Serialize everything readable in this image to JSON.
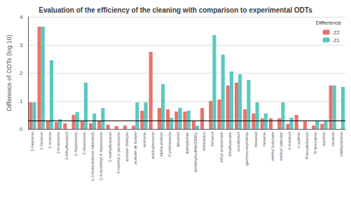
{
  "chart_data": {
    "type": "bar",
    "title": "Evaluation of the efficiency of the cleaning with comparison to experimental ODTs",
    "ylabel": "Difference of ODTs (log 10)",
    "legend_title": "Difference",
    "legend": "upper right",
    "grid": true,
    "categories": [
      "1-heptene-",
      "1-hexene-",
      "1-octene-",
      "2-butanone-",
      "2-éthylhexanol-",
      "2-heptanone-",
      "2-hexanone-",
      "2,3-butanedione (diacétyl)-",
      "2,6-diméthyl-4-heptanone-",
      "3-methylbutanal-",
      "4-methyl-2-pentanone-",
      "acetate d'éthyle-",
      "acétate de butyle-",
      "acétone-",
      "acétophenone-",
      "alpha-pinène-",
      "Cyclohexene-",
      "décanal-",
      "diéthylether-",
      "diméthylsulfide(DMS)-",
      "éthanetiol-",
      "éthanol-",
      "éthyl propionate-",
      "éthylbutyrate-",
      "eucalyptol-",
      "gamma-terpinène-",
      "hexanal-",
      "hexane-",
      "méthyl butyrate-",
      "méthyl valérate-",
      "n-butanol-",
      "o-xylène-",
      "Phenylethanot-",
      "R-limonène-",
      "styrène-",
      "toluène-",
      "triéthylamine-"
    ],
    "series": [
      {
        "name": "Z2",
        "color": "#E8736C",
        "values": [
          0.95,
          3.65,
          0.3,
          0.25,
          0.2,
          0.5,
          0.3,
          0.2,
          0.3,
          0.15,
          0.1,
          0.12,
          0.12,
          0.65,
          2.75,
          0.75,
          0.7,
          0.62,
          0.62,
          0.27,
          0.75,
          1.0,
          1.05,
          1.55,
          1.65,
          0.7,
          0.55,
          0.38,
          0.38,
          0.38,
          0.18,
          0.5,
          0.27,
          0.12,
          0.18,
          1.55,
          0.0
        ]
      },
      {
        "name": "Z1",
        "color": "#5BC8C0",
        "values": [
          0.95,
          3.65,
          2.45,
          0.35,
          0.0,
          0.6,
          1.65,
          0.55,
          0.75,
          0.0,
          0.0,
          0.0,
          0.95,
          0.95,
          0.0,
          1.6,
          0.4,
          0.75,
          0.65,
          0.12,
          0.0,
          3.35,
          2.65,
          2.05,
          1.95,
          1.75,
          0.95,
          0.55,
          0.0,
          0.95,
          0.4,
          0.0,
          0.0,
          0.28,
          0.3,
          1.55,
          1.5
        ]
      }
    ],
    "hline": 0.3,
    "ylim": [
      0,
      4
    ],
    "yticks": [
      0,
      1,
      2,
      3,
      4
    ]
  }
}
